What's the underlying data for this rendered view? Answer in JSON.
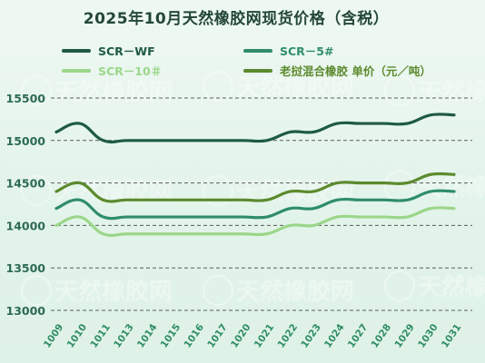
{
  "chart_data": {
    "type": "line",
    "title": "2025年10月天然橡胶网现货价格（含税）",
    "categories": [
      "1009",
      "1010",
      "1011",
      "1013",
      "1014",
      "1015",
      "1016",
      "1017",
      "1020",
      "1021",
      "1022",
      "1023",
      "1024",
      "1027",
      "1028",
      "1029",
      "1030",
      "1031"
    ],
    "ylim": [
      13000,
      15500
    ],
    "yticks": [
      13000,
      13500,
      14000,
      14500,
      15000,
      15500
    ],
    "grid": true,
    "legend_position": "top",
    "series": [
      {
        "name": "SCR－WF",
        "color": "#1e5a44",
        "values": [
          15100,
          15200,
          15000,
          15000,
          15000,
          15000,
          15000,
          15000,
          15000,
          15000,
          15100,
          15100,
          15200,
          15200,
          15200,
          15200,
          15300,
          15300
        ]
      },
      {
        "name": "SCR－5#",
        "color": "#2f8d6c",
        "values": [
          14200,
          14300,
          14100,
          14100,
          14100,
          14100,
          14100,
          14100,
          14100,
          14100,
          14200,
          14200,
          14300,
          14300,
          14300,
          14300,
          14400,
          14400
        ]
      },
      {
        "name": "SCR－10＃",
        "color": "#9bd68a",
        "values": [
          14000,
          14100,
          13900,
          13900,
          13900,
          13900,
          13900,
          13900,
          13900,
          13900,
          14000,
          14000,
          14100,
          14100,
          14100,
          14100,
          14200,
          14200
        ]
      },
      {
        "name": "老挝混合橡胶 单价（元／吨）",
        "color": "#5c8a2e",
        "values": [
          14400,
          14500,
          14300,
          14300,
          14300,
          14300,
          14300,
          14300,
          14300,
          14300,
          14400,
          14400,
          14500,
          14500,
          14500,
          14500,
          14600,
          14600
        ]
      }
    ]
  },
  "watermark": {
    "text": "天然橡胶网"
  }
}
